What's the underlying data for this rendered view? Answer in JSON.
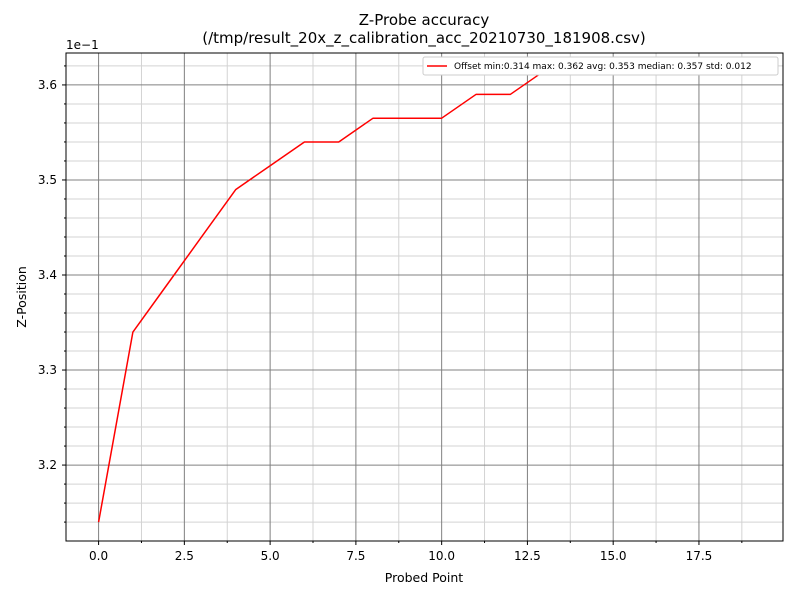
{
  "colors": {
    "line": "#ff0000",
    "major_grid": "#808080",
    "minor_grid": "#d3d3d3",
    "axis": "#000000",
    "background": "#ffffff"
  },
  "chart_data": {
    "type": "line",
    "title": "Z-Probe accuracy",
    "subtitle": "(/tmp/result_20x_z_calibration_acc_20210730_181908.csv)",
    "xlabel": "Probed Point",
    "ylabel": "Z-Position",
    "y_offset_text": "1e−1",
    "xlim": [
      -0.95,
      19.95
    ],
    "ylim": [
      3.1201,
      3.6336
    ],
    "x_ticks": [
      0.0,
      2.5,
      5.0,
      7.5,
      10.0,
      12.5,
      15.0,
      17.5
    ],
    "x_tick_labels": [
      "0.0",
      "2.5",
      "5.0",
      "7.5",
      "10.0",
      "12.5",
      "15.0",
      "17.5"
    ],
    "y_ticks": [
      3.2,
      3.3,
      3.4,
      3.5,
      3.6
    ],
    "y_tick_labels": [
      "3.2",
      "3.3",
      "3.4",
      "3.5",
      "3.6"
    ],
    "x_minor_step": 1.25,
    "y_minor_step": 0.02,
    "grid": true,
    "legend_position": "top-right",
    "series": [
      {
        "name": "Offset min:0.314 max: 0.362 avg: 0.353 median: 0.357 std: 0.012",
        "x": [
          0,
          1,
          2,
          3,
          4,
          5,
          6,
          7,
          8,
          9,
          10,
          11,
          12,
          13,
          14,
          15,
          16,
          17,
          18,
          19
        ],
        "y": [
          3.14,
          3.34,
          3.39,
          3.44,
          3.49,
          3.515,
          3.54,
          3.54,
          3.565,
          3.565,
          3.565,
          3.59,
          3.59,
          3.615,
          3.615,
          3.615,
          3.615,
          3.615,
          3.615,
          3.615
        ]
      }
    ]
  }
}
